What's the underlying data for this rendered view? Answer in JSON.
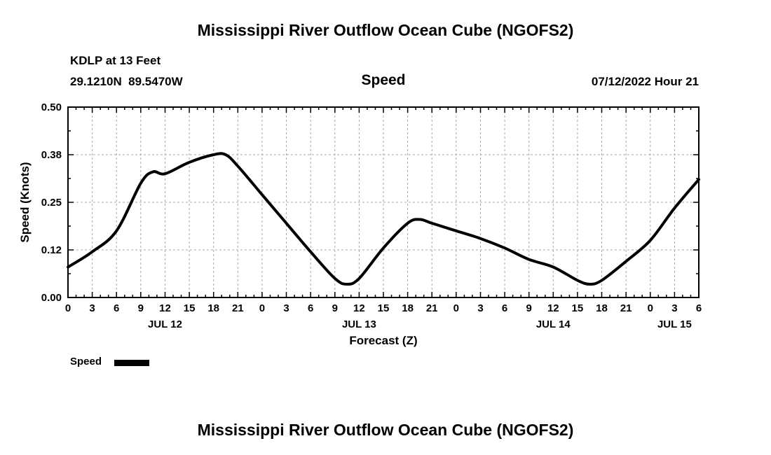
{
  "header": {
    "title": "Mississippi River Outflow Ocean Cube (NGOFS2)",
    "station_line1": "KDLP at 13 Feet",
    "station_line2": "29.1210N  89.5470W",
    "panel_title": "Speed",
    "datetime": "07/12/2022 Hour 21"
  },
  "footer": {
    "title": "Mississippi River Outflow Ocean Cube (NGOFS2)"
  },
  "legend": {
    "label": "Speed",
    "swatch_color": "#000000",
    "position": "bottom-left"
  },
  "chart_data": {
    "type": "line",
    "title": "Speed",
    "xlabel": "Forecast (Z)",
    "ylabel": "Speed (Knots)",
    "xlim": [
      0,
      78
    ],
    "ylim": [
      0,
      0.5
    ],
    "grid": "dashed",
    "grid_color": "#a8a8a8",
    "xticks": {
      "hours": [
        0,
        3,
        6,
        9,
        12,
        15,
        18,
        21,
        24,
        27,
        30,
        33,
        36,
        39,
        42,
        45,
        48,
        51,
        54,
        57,
        60,
        63,
        66,
        69,
        72,
        75,
        78
      ],
      "labels": [
        "0",
        "3",
        "6",
        "9",
        "12",
        "15",
        "18",
        "21",
        "0",
        "3",
        "6",
        "9",
        "12",
        "15",
        "18",
        "21",
        "0",
        "3",
        "6",
        "9",
        "12",
        "15",
        "18",
        "21",
        "0",
        "3",
        "6"
      ]
    },
    "yticks": {
      "values": [
        0,
        0.125,
        0.25,
        0.375,
        0.5
      ],
      "labels": [
        "0.00",
        "0.12",
        "0.25",
        "0.38",
        "0.50"
      ]
    },
    "day_labels": [
      {
        "label": "JUL 12",
        "hour": 12
      },
      {
        "label": "JUL 13",
        "hour": 36
      },
      {
        "label": "JUL 14",
        "hour": 60
      },
      {
        "label": "JUL 15",
        "hour": 75
      }
    ],
    "series": [
      {
        "name": "Speed",
        "color": "#000000",
        "x": [
          0,
          3,
          6,
          9,
          10.5,
          12,
          15,
          18,
          19.5,
          21,
          24,
          27,
          30,
          33,
          34.5,
          36,
          39,
          42,
          43.5,
          45,
          48,
          51,
          54,
          57,
          60,
          63,
          64.5,
          66,
          69,
          72,
          75,
          78
        ],
        "y": [
          0.08,
          0.12,
          0.175,
          0.3,
          0.33,
          0.325,
          0.355,
          0.375,
          0.375,
          0.345,
          0.27,
          0.195,
          0.12,
          0.05,
          0.035,
          0.05,
          0.13,
          0.195,
          0.205,
          0.195,
          0.175,
          0.155,
          0.13,
          0.1,
          0.08,
          0.045,
          0.035,
          0.045,
          0.095,
          0.15,
          0.235,
          0.31
        ]
      }
    ]
  }
}
